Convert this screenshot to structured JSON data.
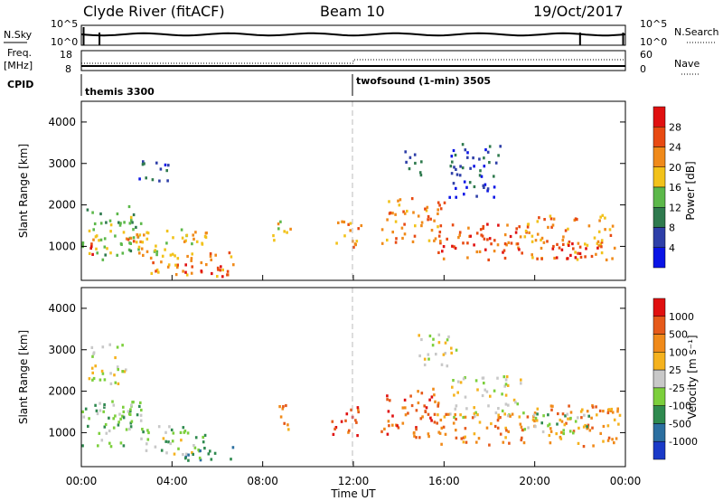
{
  "header": {
    "station": "Clyde River (fitACF)",
    "beam": "Beam 10",
    "date": "19/Oct/2017"
  },
  "status_panel": {
    "left_labels": {
      "nsky": "N.Sky",
      "freq": "Freq.",
      "freq_unit": "[MHz]",
      "cpid": "CPID"
    },
    "right_labels": {
      "nsearch": "N.Search",
      "nave": "Nave"
    },
    "noise_ticks_left": [
      "10^5",
      "10^0"
    ],
    "noise_ticks_right": [
      "10^5",
      "10^0"
    ],
    "freq_ticks": [
      "18",
      "8"
    ],
    "nave_ticks": [
      "60",
      "0"
    ],
    "cpid_segments": [
      {
        "label": "themis 3300",
        "start_hour": 0
      },
      {
        "label": "twofsound (1-min) 3505",
        "start_hour": 12
      }
    ]
  },
  "x_axis": {
    "label": "Time UT",
    "tick_labels": [
      "00:00",
      "04:00",
      "08:00",
      "12:00",
      "16:00",
      "20:00",
      "00:00"
    ]
  },
  "colors": {
    "power_scale": [
      "#0a14e6",
      "#2e3fa8",
      "#2f7a4e",
      "#5cb84a",
      "#f2c21a",
      "#f08a1a",
      "#e84a12",
      "#e01010"
    ],
    "velocity_scale": [
      "#1a3ac8",
      "#2c6fa0",
      "#2f8a4f",
      "#7ccf3c",
      "#c8c8c8",
      "#f5b21e",
      "#f08a1a",
      "#e65a1a",
      "#e01010"
    ]
  },
  "chart_data": [
    {
      "type": "heatmap",
      "panel": "power",
      "ylabel": "Slant Range [km]",
      "xlabel": "",
      "xlim_hours": [
        0,
        24
      ],
      "ylim": [
        180,
        4500
      ],
      "y_ticks": [
        "4000",
        "3000",
        "2000",
        "1000"
      ],
      "colorbar_label": "Power [dB]",
      "colorbar_ticks": [
        "28",
        "24",
        "20",
        "16",
        "12",
        "8",
        "4"
      ],
      "scatter_regions": [
        {
          "t": [
            0.0,
            2.6
          ],
          "r": [
            700,
            2000
          ],
          "level": 3
        },
        {
          "t": [
            0.2,
            1.0
          ],
          "r": [
            800,
            1200
          ],
          "level": 6
        },
        {
          "t": [
            1.5,
            2.8
          ],
          "r": [
            1000,
            1500
          ],
          "level": 5
        },
        {
          "t": [
            2.2,
            3.8
          ],
          "r": [
            2600,
            3100
          ],
          "level": 1
        },
        {
          "t": [
            2.5,
            5.5
          ],
          "r": [
            800,
            1500
          ],
          "level": 4
        },
        {
          "t": [
            3.0,
            6.8
          ],
          "r": [
            300,
            900
          ],
          "level": 5
        },
        {
          "t": [
            4.5,
            6.5
          ],
          "r": [
            300,
            600
          ],
          "level": 7
        },
        {
          "t": [
            8.4,
            9.2
          ],
          "r": [
            1100,
            1700
          ],
          "level": 4
        },
        {
          "t": [
            11.0,
            12.3
          ],
          "r": [
            1000,
            1700
          ],
          "level": 5
        },
        {
          "t": [
            13.2,
            16.0
          ],
          "r": [
            1100,
            2200
          ],
          "level": 5
        },
        {
          "t": [
            14.2,
            15.0
          ],
          "r": [
            2700,
            3400
          ],
          "level": 2
        },
        {
          "t": [
            16.2,
            18.5
          ],
          "r": [
            2200,
            3500
          ],
          "level": 1
        },
        {
          "t": [
            15.5,
            19.5
          ],
          "r": [
            700,
            1600
          ],
          "level": 6
        },
        {
          "t": [
            19.5,
            23.6
          ],
          "r": [
            700,
            1800
          ],
          "level": 5
        },
        {
          "t": [
            20.5,
            22.8
          ],
          "r": [
            700,
            1100
          ],
          "level": 7
        }
      ]
    },
    {
      "type": "heatmap",
      "panel": "velocity",
      "ylabel": "Slant Range [km]",
      "xlabel": "Time UT",
      "xlim_hours": [
        0,
        24
      ],
      "ylim": [
        180,
        4500
      ],
      "y_ticks": [
        "4000",
        "3000",
        "2000",
        "1000"
      ],
      "colorbar_label": "Velocity [m s⁻¹]",
      "colorbar_ticks": [
        "1000",
        "500",
        "100",
        "25",
        "-25",
        "-100",
        "-500",
        "-1000"
      ],
      "scatter_regions": [
        {
          "t": [
            0.0,
            2.6
          ],
          "r": [
            700,
            1800
          ],
          "level": 3
        },
        {
          "t": [
            0.2,
            2.0
          ],
          "r": [
            2200,
            3200
          ],
          "level": 4
        },
        {
          "t": [
            1.2,
            2.6
          ],
          "r": [
            1200,
            1800
          ],
          "level": 3
        },
        {
          "t": [
            2.5,
            5.5
          ],
          "r": [
            600,
            1200
          ],
          "level": 3
        },
        {
          "t": [
            3.5,
            5.0
          ],
          "r": [
            500,
            900
          ],
          "level": 4
        },
        {
          "t": [
            4.5,
            6.8
          ],
          "r": [
            300,
            700
          ],
          "level": 2
        },
        {
          "t": [
            8.4,
            9.2
          ],
          "r": [
            1100,
            1700
          ],
          "level": 6
        },
        {
          "t": [
            11.0,
            12.3
          ],
          "r": [
            900,
            1700
          ],
          "level": 7
        },
        {
          "t": [
            13.2,
            16.0
          ],
          "r": [
            900,
            2100
          ],
          "level": 7
        },
        {
          "t": [
            14.8,
            16.5
          ],
          "r": [
            2600,
            3400
          ],
          "level": 4
        },
        {
          "t": [
            16.2,
            19.5
          ],
          "r": [
            1400,
            2400
          ],
          "level": 4
        },
        {
          "t": [
            15.5,
            19.5
          ],
          "r": [
            700,
            1500
          ],
          "level": 6
        },
        {
          "t": [
            19.5,
            23.8
          ],
          "r": [
            700,
            1700
          ],
          "level": 6
        },
        {
          "t": [
            19.5,
            22.5
          ],
          "r": [
            1000,
            1500
          ],
          "level": 3
        }
      ]
    }
  ]
}
